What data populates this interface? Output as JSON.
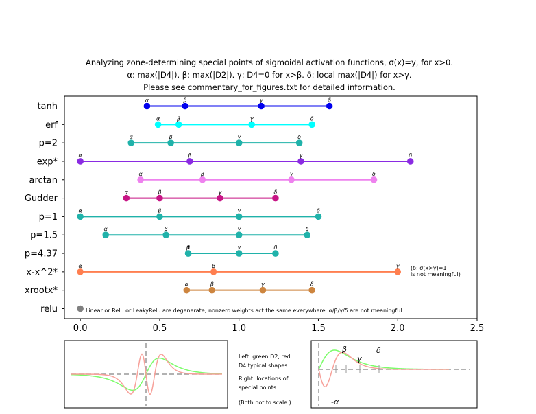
{
  "chart_data": {
    "type": "line",
    "title": [
      "Analyzing zone-determining special points of sigmoidal activation functions, σ(x)=y, for x>0.",
      "α: max(|D4|). β: max(|D2|). γ: D4=0 for x>β. δ: local max(|D4|) for x>γ.",
      "Please see commentary_for_figures.txt for detailed information."
    ],
    "xlim": [
      -0.1,
      2.5
    ],
    "xticks": [
      "0.0",
      "0.5",
      "1.0",
      "1.5",
      "2.0",
      "2.5"
    ],
    "point_labels": [
      "α",
      "β",
      "γ",
      "δ"
    ],
    "rows": [
      {
        "name": "tanh",
        "color": "#0000ee",
        "points": [
          0.42,
          0.66,
          1.14,
          1.57
        ]
      },
      {
        "name": "erf",
        "color": "#00ffff",
        "points": [
          0.49,
          0.62,
          1.08,
          1.46
        ]
      },
      {
        "name": "p=2",
        "color": "#20b2aa",
        "points": [
          0.32,
          0.57,
          1.0,
          1.38
        ]
      },
      {
        "name": "exp*",
        "color": "#8a2be2",
        "points": [
          0.0,
          0.69,
          1.39,
          2.08
        ]
      },
      {
        "name": "arctan",
        "color": "#ee82ee",
        "points": [
          0.38,
          0.77,
          1.33,
          1.85
        ]
      },
      {
        "name": "Gudder",
        "color": "#c71585",
        "points": [
          0.29,
          0.5,
          0.88,
          1.23
        ]
      },
      {
        "name": "p=1",
        "color": "#20b2aa",
        "points": [
          0.0,
          0.5,
          1.0,
          1.5
        ]
      },
      {
        "name": "p=1.5",
        "color": "#20b2aa",
        "points": [
          0.16,
          0.54,
          1.0,
          1.43
        ]
      },
      {
        "name": "p=4.37",
        "color": "#20b2aa",
        "points": [
          0.68,
          0.68,
          1.0,
          1.23
        ]
      },
      {
        "name": "x-x^2*",
        "color": "#ff7f50",
        "points": [
          0.0,
          0.84,
          2.0
        ],
        "labels": [
          "α",
          "β",
          "γ"
        ]
      },
      {
        "name": "xrootx*",
        "color": "#cd853f",
        "points": [
          0.67,
          0.83,
          1.15,
          1.46
        ]
      },
      {
        "name": "relu",
        "color": "#808080",
        "points": [
          0.0
        ],
        "labels": [
          ""
        ]
      }
    ],
    "annotations": {
      "relu_note": "Linear or Relu or LeakyRelu are degenerate; nonzero weights act the same everywhere. α/β/γ/δ are not meaningful.",
      "xx2_note_1": "(δ: σ(x>γ)=1",
      "xx2_note_2": " is not meaningful)"
    }
  },
  "inset": {
    "note_left_1": "Left: green:D2, red:",
    "note_left_2": "D4 typical shapes.",
    "note_right_1": "Right: locations of",
    "note_right_2": "special points.",
    "note_scale": "(Both not to scale.)",
    "right_labels": {
      "alpha": "-α",
      "beta": "β",
      "gamma": "γ",
      "delta": "δ"
    }
  },
  "colors": {
    "green": "#7cfc6a",
    "red": "#f7a19a",
    "dash": "#999999"
  }
}
